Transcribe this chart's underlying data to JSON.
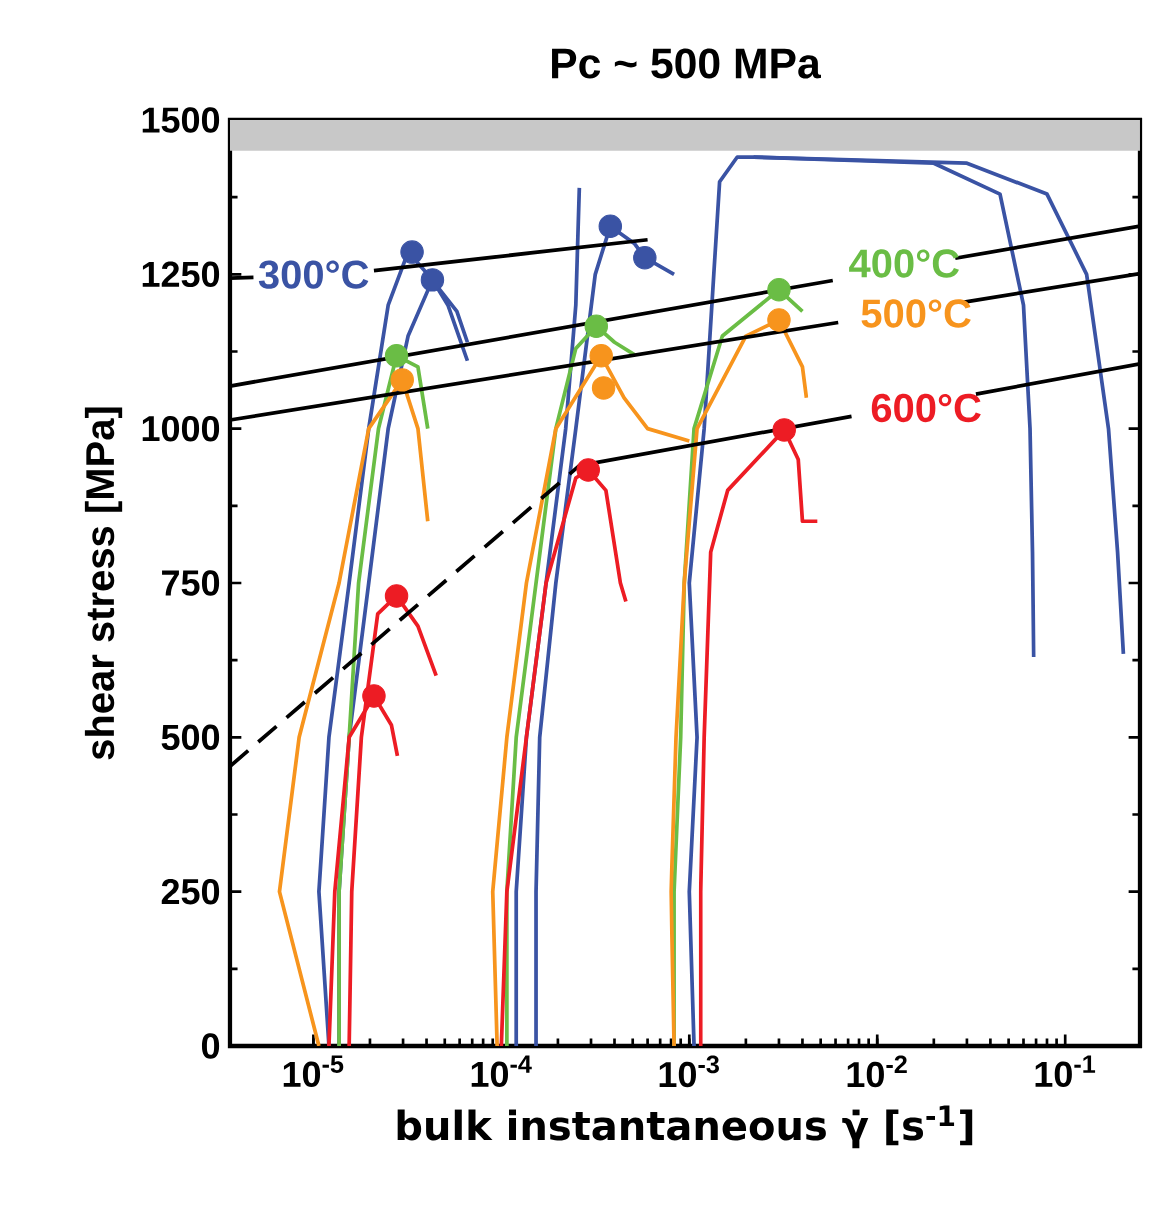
{
  "chart_data": {
    "type": "line",
    "title": "Pc ~ 500 MPa",
    "xlabel": "bulk instantaneous γ̇ [s$^{-1}$]",
    "ylabel": "shear stress [MPa]",
    "log": "x",
    "xlim": [
      3.6e-06,
      0.25
    ],
    "ylim": [
      0,
      1500
    ],
    "xticks": [
      {
        "value": 1e-05,
        "label": "10$^{-5}$"
      },
      {
        "value": 0.0001,
        "label": "10$^{-4}$"
      },
      {
        "value": 0.001,
        "label": "10$^{-3}$"
      },
      {
        "value": 0.01,
        "label": "10$^{-2}$"
      },
      {
        "value": 0.1,
        "label": "10$^{-1}$"
      }
    ],
    "yticks": [
      0,
      250,
      500,
      750,
      1000,
      1250,
      1500
    ],
    "marker": "none",
    "line_style": "solid",
    "bands": [
      {
        "axis": "y",
        "from": 1450,
        "to": 1500,
        "color": "#c8c8c8"
      }
    ],
    "series": [
      {
        "color": "#3a53a4",
        "x": [
          1.21e-05,
          1.07e-05,
          1.21e-05,
          1.55e-05,
          1.97e-05,
          2.5e-05,
          3.19e-05,
          4.06e-05,
          5.8e-05,
          6.6e-05
        ],
        "values": [
          0,
          250,
          500,
          750,
          1000,
          1200,
          1286,
          1250,
          1190,
          1140
        ]
      },
      {
        "color": "#3a53a4",
        "x": [
          1.37e-05,
          1.37e-05,
          1.55e-05,
          1.97e-05,
          2.5e-05,
          3.19e-05,
          4.3e-05,
          5.2e-05,
          6.6e-05
        ],
        "values": [
          0,
          250,
          500,
          750,
          1000,
          1150,
          1241,
          1200,
          1110
        ]
      },
      {
        "color": "#3a53a4",
        "x": [
          0.00012,
          0.00012,
          0.000136,
          0.000173,
          0.00022,
          0.000249,
          0.00026
        ],
        "values": [
          0,
          250,
          500,
          750,
          1000,
          1200,
          1390
        ]
      },
      {
        "color": "#3a53a4",
        "x": [
          0.000153,
          0.000153,
          0.00016,
          0.000195,
          0.000249,
          0.000316,
          0.00038,
          0.00051,
          0.00058,
          0.00083
        ],
        "values": [
          0,
          250,
          500,
          750,
          1000,
          1250,
          1328,
          1300,
          1277,
          1250
        ]
      },
      {
        "color": "#3a53a4",
        "x": [
          0.00106,
          0.001,
          0.0011,
          0.001,
          0.0012,
          0.00135,
          0.00145,
          0.0018,
          0.0022,
          0.02,
          0.045,
          0.06,
          0.065,
          0.067,
          0.068
        ],
        "values": [
          0,
          250,
          500,
          750,
          1000,
          1250,
          1400,
          1440,
          1440,
          1430,
          1380,
          1200,
          1000,
          800,
          630
        ]
      },
      {
        "color": "#3a53a4",
        "x": [
          0.0022,
          0.03,
          0.08,
          0.13,
          0.17,
          0.19,
          0.204
        ],
        "values": [
          1440,
          1430,
          1380,
          1250,
          1000,
          800,
          635
        ]
      },
      {
        "color": "#6abd45",
        "x": [
          1.37e-05,
          1.37e-05,
          1.55e-05,
          1.74e-05,
          2.22e-05,
          2.77e-05,
          3.6e-05,
          4.06e-05
        ],
        "values": [
          0,
          250,
          500,
          750,
          1000,
          1118,
          1100,
          1000
        ]
      },
      {
        "color": "#6abd45",
        "x": [
          0.000107,
          0.000107,
          0.00012,
          0.000153,
          0.000195,
          0.000249,
          0.00032,
          0.0004,
          0.00051
        ],
        "values": [
          0,
          250,
          500,
          750,
          1000,
          1130,
          1166,
          1140,
          1120
        ]
      },
      {
        "color": "#6abd45",
        "x": [
          0.00083,
          0.00083,
          0.0009,
          0.00094,
          0.00106,
          0.0015,
          0.003,
          0.004
        ],
        "values": [
          0,
          250,
          500,
          750,
          1000,
          1150,
          1225,
          1190
        ]
      },
      {
        "color": "#f7941d",
        "x": [
          1.07e-05,
          6.6e-06,
          8.4e-06,
          1.37e-05,
          1.97e-05,
          2.97e-05,
          3.6e-05,
          4.06e-05
        ],
        "values": [
          0,
          250,
          500,
          750,
          1000,
          1079,
          1000,
          850
        ]
      },
      {
        "color": "#f7941d",
        "x": [
          9.5e-05,
          9e-05,
          0.000107,
          0.000136,
          0.000195,
          0.00034,
          0.00045,
          0.0006,
          0.001
        ],
        "values": [
          0,
          250,
          500,
          750,
          1000,
          1118,
          1050,
          1000,
          980
        ]
      },
      {
        "color": "#f7941d",
        "x": [
          0.00083,
          0.0008,
          0.00085,
          0.00094,
          0.0011,
          0.002,
          0.003,
          0.004,
          0.0042
        ],
        "values": [
          0,
          250,
          500,
          750,
          1000,
          1150,
          1176,
          1100,
          1050
        ]
      },
      {
        "color": "#ed1c24",
        "x": [
          1.21e-05,
          1.3e-05,
          1.55e-05,
          2.1e-05,
          2.6e-05,
          2.8e-05
        ],
        "values": [
          0,
          250,
          500,
          567,
          520,
          470
        ]
      },
      {
        "color": "#ed1c24",
        "x": [
          1.55e-05,
          1.6e-05,
          1.8e-05,
          2.2e-05,
          2.77e-05,
          3.6e-05,
          4.5e-05
        ],
        "values": [
          0,
          250,
          500,
          700,
          729,
          680,
          600
        ]
      },
      {
        "color": "#ed1c24",
        "x": [
          0.0001,
          0.000107,
          0.000136,
          0.000173,
          0.000249,
          0.00029,
          0.00036,
          0.00043,
          0.00046
        ],
        "values": [
          0,
          250,
          500,
          750,
          920,
          933,
          900,
          750,
          720
        ]
      },
      {
        "color": "#ed1c24",
        "x": [
          0.00115,
          0.00115,
          0.0012,
          0.0013,
          0.0016,
          0.0032,
          0.0038,
          0.004,
          0.0048
        ],
        "values": [
          0,
          250,
          500,
          800,
          900,
          998,
          950,
          850,
          850
        ]
      },
      {
        "type": "line",
        "color": "#000000",
        "x": [
          3.6e-06,
          4.8e-06,
          1e-05,
          2.1e-05,
          0.0006
        ],
        "values": [
          1244,
          1245,
          null,
          1256,
          1306
        ]
      },
      {
        "type": "line",
        "color": "#000000",
        "x": [
          3.6e-06,
          0.0058,
          0.013,
          0.026,
          0.25
        ],
        "values": [
          1069,
          1240,
          null,
          1276,
          1328
        ]
      },
      {
        "type": "line",
        "color": "#000000",
        "x": [
          3.6e-06,
          0.0062,
          0.014,
          0.029,
          0.25
        ],
        "values": [
          1014,
          1172,
          null,
          1205,
          1251
        ]
      },
      {
        "type": "line",
        "color": "#000000",
        "x": [
          0.00026,
          0.0073,
          0.016,
          0.0335,
          0.25
        ],
        "values": [
          940,
          1020,
          null,
          1056,
          1105
        ]
      },
      {
        "type": "line",
        "color": "#000000",
        "line_style": "dashed",
        "x": [
          3.6e-06,
          0.00026
        ],
        "values": [
          453,
          940
        ]
      },
      {
        "type": "scatter",
        "marker": "circle",
        "name": "300°C",
        "color": "#3a53a4",
        "x": [
          3.35e-05,
          4.3e-05,
          0.00038,
          0.00058
        ],
        "values": [
          1286,
          1241,
          1328,
          1277
        ]
      },
      {
        "type": "scatter",
        "marker": "circle",
        "name": "400°C",
        "color": "#6abd45",
        "x": [
          2.77e-05,
          0.00032,
          0.003
        ],
        "values": [
          1118,
          1166,
          1225
        ]
      },
      {
        "type": "scatter",
        "marker": "circle",
        "name": "500°C",
        "color": "#f7941d",
        "x": [
          2.97e-05,
          0.00034,
          0.00035,
          0.003
        ],
        "values": [
          1079,
          1118,
          1066,
          1176
        ]
      },
      {
        "type": "scatter",
        "marker": "circle",
        "name": "600°C",
        "color": "#ed1c24",
        "x": [
          2.1e-05,
          2.77e-05,
          0.00029,
          0.0032
        ],
        "values": [
          567,
          729,
          933,
          998
        ]
      }
    ]
  }
}
